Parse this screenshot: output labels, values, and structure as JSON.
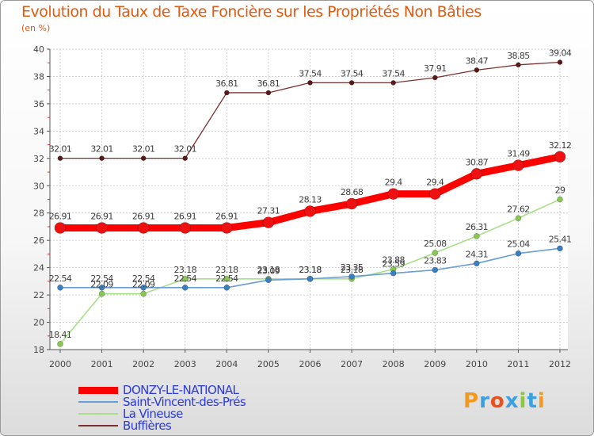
{
  "chart_data": {
    "type": "line",
    "title": "Evolution du Taux de Taxe Foncière sur les Propriétés Non Bâties",
    "subtitle": "(en %)",
    "categories": [
      "2000",
      "2001",
      "2002",
      "2003",
      "2004",
      "2005",
      "2006",
      "2007",
      "2008",
      "2009",
      "2010",
      "2011",
      "2012"
    ],
    "ylim": [
      18,
      40
    ],
    "yticks": [
      18,
      20,
      22,
      24,
      26,
      28,
      30,
      32,
      34,
      36,
      38,
      40
    ],
    "grid": true,
    "series": [
      {
        "name": "DONZY-LE-NATIONAL",
        "color": "#ff0000",
        "marker_color": "#ee1111",
        "values": [
          26.91,
          26.91,
          26.91,
          26.91,
          26.91,
          27.31,
          28.13,
          28.68,
          29.4,
          29.4,
          30.87,
          31.49,
          32.12
        ],
        "labels": [
          "26.91",
          "26.91",
          "26.91",
          "26.91",
          "26.91",
          "27.31",
          "28.13",
          "28.68",
          "29.4",
          "29.4",
          "30.87",
          "31.49",
          "32.12"
        ]
      },
      {
        "name": "Saint-Vincent-des-Prés",
        "color": "#6a9fd4",
        "marker_color": "#3a7fc4",
        "values": [
          22.54,
          22.54,
          22.54,
          22.54,
          22.54,
          23.09,
          23.18,
          23.35,
          23.59,
          23.83,
          24.31,
          25.04,
          25.41
        ],
        "labels": [
          "22.54",
          "22.54",
          "22.54",
          "22.54",
          "22.54",
          "23.09",
          "23.18",
          "23.35",
          "23.59",
          "23.83",
          "24.31",
          "25.04",
          "25.41"
        ]
      },
      {
        "name": "La Vineuse",
        "color": "#a8e08a",
        "marker_color": "#88c850",
        "values": [
          18.41,
          22.09,
          22.09,
          23.18,
          23.18,
          23.18,
          23.18,
          23.18,
          23.88,
          25.08,
          26.31,
          27.62,
          29.0
        ],
        "labels": [
          "18.41",
          "22.09",
          "22.09",
          "23.18",
          "23.18",
          "23.18",
          "23.18",
          "23.18",
          "23.88",
          "25.08",
          "26.31",
          "27.62",
          "29"
        ]
      },
      {
        "name": "Buffières",
        "color": "#7a3030",
        "marker_color": "#5a1818",
        "values": [
          32.01,
          32.01,
          32.01,
          32.01,
          36.81,
          36.81,
          37.54,
          37.54,
          37.54,
          37.91,
          38.47,
          38.85,
          39.04
        ],
        "labels": [
          "32.01",
          "32.01",
          "32.01",
          "32.01",
          "36.81",
          "36.81",
          "37.54",
          "37.54",
          "37.54",
          "37.91",
          "38.47",
          "38.85",
          "39.04"
        ]
      }
    ],
    "legend_position": "bottom-left"
  },
  "logo": {
    "letters": [
      "P",
      "r",
      "o",
      "x",
      "i",
      "t",
      "i"
    ],
    "colors": [
      "#f39a1e",
      "#3aa0e0",
      "#e8501e",
      "#3aa0e0",
      "#8cc63f",
      "#3aa0e0",
      "#f39a1e"
    ]
  }
}
